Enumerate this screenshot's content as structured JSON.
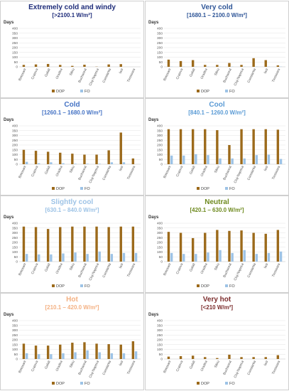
{
  "chart_data": [
    {
      "type": "bar",
      "title": "Extremely cold and windy",
      "subtitle": "[>2100.1 W/m²]",
      "title_color": "#1f2d7a",
      "ylabel": "Days",
      "ylim": [
        0,
        400
      ],
      "yticks": [
        0,
        50,
        100,
        150,
        200,
        250,
        300,
        350,
        400
      ],
      "categories": [
        "Botosani",
        "Craiova",
        "Galati",
        "Oradea",
        "Sibiu",
        "Bucharest",
        "Cluj-Napoca",
        "Constanta",
        "Iasi",
        "Timisoara"
      ],
      "series": [
        {
          "name": "DOP",
          "color": "#9c6a1b",
          "values": [
            20,
            25,
            30,
            20,
            10,
            22,
            2,
            25,
            28,
            0
          ]
        },
        {
          "name": "FO",
          "color": "#9dc3e6",
          "values": [
            0,
            0,
            0,
            0,
            0,
            0,
            0,
            0,
            0,
            0
          ]
        }
      ],
      "legend": "bottom"
    },
    {
      "type": "bar",
      "title": "Very cold",
      "subtitle": "[1680.1 – 2100.0 W/m²]",
      "title_color": "#2e5597",
      "ylabel": "Days",
      "ylim": [
        0,
        400
      ],
      "yticks": [
        0,
        50,
        100,
        150,
        200,
        250,
        300,
        350,
        400
      ],
      "categories": [
        "Botosani",
        "Craiova",
        "Galati",
        "Oradea",
        "Sibiu",
        "Bucharest",
        "Cluj-Napoca",
        "Constanta",
        "Iasi",
        "Timisoara"
      ],
      "series": [
        {
          "name": "DOP",
          "color": "#9c6a1b",
          "values": [
            75,
            60,
            70,
            20,
            20,
            40,
            20,
            90,
            70,
            15
          ]
        },
        {
          "name": "FO",
          "color": "#9dc3e6",
          "values": [
            2,
            2,
            2,
            2,
            2,
            2,
            2,
            2,
            2,
            2
          ]
        }
      ],
      "legend": "bottom"
    },
    {
      "type": "bar",
      "title": "Cold",
      "subtitle": "[1260.1 – 1680.0 W/m²]",
      "title_color": "#4472c4",
      "ylabel": "Days",
      "ylim": [
        0,
        400
      ],
      "yticks": [
        0,
        50,
        100,
        150,
        200,
        250,
        300,
        350,
        400
      ],
      "categories": [
        "Botosani",
        "Craiova",
        "Galati",
        "Oradea",
        "Sibiu",
        "Bucharest",
        "Cluj-Napoca",
        "Constanta",
        "Iasi",
        "Timisoara"
      ],
      "series": [
        {
          "name": "DOP",
          "color": "#9c6a1b",
          "values": [
            150,
            140,
            130,
            120,
            110,
            100,
            100,
            145,
            330,
            60
          ]
        },
        {
          "name": "FO",
          "color": "#9dc3e6",
          "values": [
            25,
            10,
            20,
            10,
            5,
            5,
            5,
            20,
            20,
            0
          ]
        }
      ],
      "legend": "bottom"
    },
    {
      "type": "bar",
      "title": "Cool",
      "subtitle": "[840.1 – 1260.0 W/m²]",
      "title_color": "#5b9bd5",
      "ylabel": "Days",
      "ylim": [
        0,
        400
      ],
      "yticks": [
        0,
        50,
        100,
        150,
        200,
        250,
        300,
        350,
        400
      ],
      "categories": [
        "Botosani",
        "Craiova",
        "Galati",
        "Oradea",
        "Sibiu",
        "Bucharest",
        "Cluj-Napoca",
        "Constanta",
        "Iasi",
        "Timisoara"
      ],
      "series": [
        {
          "name": "DOP",
          "color": "#9c6a1b",
          "values": [
            365,
            365,
            365,
            365,
            355,
            200,
            365,
            365,
            365,
            360
          ]
        },
        {
          "name": "FO",
          "color": "#9dc3e6",
          "values": [
            90,
            90,
            105,
            95,
            60,
            60,
            60,
            95,
            100,
            55
          ]
        }
      ],
      "legend": "bottom"
    },
    {
      "type": "bar",
      "title": "Slightly cool",
      "subtitle": "[630.1 – 840.0 W/m²]",
      "title_color": "#9dc3e6",
      "ylabel": "Days",
      "ylim": [
        0,
        400
      ],
      "yticks": [
        0,
        50,
        100,
        150,
        200,
        250,
        300,
        350,
        400
      ],
      "categories": [
        "Botosani",
        "Craiova",
        "Galati",
        "Oradea",
        "Sibiu",
        "Bucharest",
        "Cluj-Napoca",
        "Constanta",
        "Iasi",
        "Timisoara"
      ],
      "series": [
        {
          "name": "DOP",
          "color": "#9c6a1b",
          "values": [
            365,
            360,
            340,
            360,
            365,
            365,
            365,
            360,
            365,
            365
          ]
        },
        {
          "name": "FO",
          "color": "#9dc3e6",
          "values": [
            80,
            75,
            75,
            85,
            95,
            80,
            105,
            80,
            90,
            90
          ]
        }
      ],
      "legend": "bottom"
    },
    {
      "type": "bar",
      "title": "Neutral",
      "subtitle": "[420.1 – 630.0 W/m²]",
      "title_color": "#6e8a1f",
      "ylabel": "Days",
      "ylim": [
        0,
        400
      ],
      "yticks": [
        0,
        50,
        100,
        150,
        200,
        250,
        300,
        350,
        400
      ],
      "categories": [
        "Botosani",
        "Craiova",
        "Galati",
        "Oradea",
        "Sibiu",
        "Bucharest",
        "Cluj-Napoca",
        "Constanta",
        "Iasi",
        "Timisoara"
      ],
      "series": [
        {
          "name": "DOP",
          "color": "#9c6a1b",
          "values": [
            310,
            300,
            245,
            300,
            330,
            320,
            325,
            300,
            290,
            330
          ]
        },
        {
          "name": "FO",
          "color": "#9dc3e6",
          "values": [
            90,
            80,
            80,
            95,
            120,
            90,
            120,
            80,
            90,
            105
          ]
        }
      ],
      "legend": "bottom"
    },
    {
      "type": "bar",
      "title": "Hot",
      "subtitle": "[210.1 – 420.0 W/m²]",
      "title_color": "#f4b183",
      "ylabel": "Days",
      "ylim": [
        0,
        400
      ],
      "yticks": [
        0,
        50,
        100,
        150,
        200,
        250,
        300,
        350,
        400
      ],
      "categories": [
        "Botosani",
        "Craiova",
        "Galati",
        "Oradea",
        "Sibiu",
        "Bucharest",
        "Cluj-Napoca",
        "Constanta",
        "Iasi",
        "Timisoara"
      ],
      "series": [
        {
          "name": "DOP",
          "color": "#9c6a1b",
          "values": [
            160,
            140,
            140,
            150,
            170,
            175,
            160,
            155,
            150,
            185
          ]
        },
        {
          "name": "FO",
          "color": "#9dc3e6",
          "values": [
            60,
            50,
            50,
            60,
            70,
            90,
            70,
            60,
            60,
            80
          ]
        }
      ],
      "legend": "bottom"
    },
    {
      "type": "bar",
      "title": "Very hot",
      "subtitle": "[<210 W/m²]",
      "title_color": "#7b2c2c",
      "ylabel": "Days",
      "ylim": [
        0,
        400
      ],
      "yticks": [
        0,
        50,
        100,
        150,
        200,
        250,
        300,
        350,
        400
      ],
      "categories": [
        "Botosani",
        "Craiova",
        "Galati",
        "Oradea",
        "Sibiu",
        "Bucharest",
        "Cluj-Napoca",
        "Constanta",
        "Iasi",
        "Timisoara"
      ],
      "series": [
        {
          "name": "DOP",
          "color": "#9c6a1b",
          "values": [
            25,
            30,
            35,
            20,
            10,
            45,
            20,
            20,
            20,
            40
          ]
        },
        {
          "name": "FO",
          "color": "#9dc3e6",
          "values": [
            0,
            0,
            0,
            0,
            0,
            0,
            0,
            0,
            0,
            0
          ]
        }
      ],
      "legend": "bottom"
    }
  ]
}
